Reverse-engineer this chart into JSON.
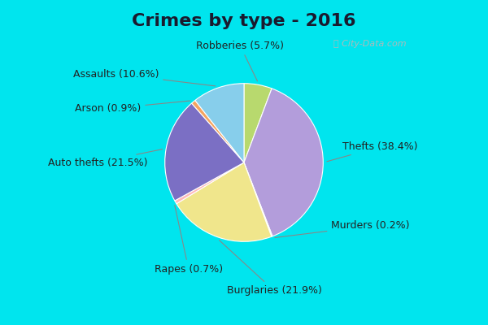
{
  "title": "Crimes by type - 2016",
  "pie_labels": [
    "Robberies",
    "Thefts",
    "Murders",
    "Burglaries",
    "Rapes",
    "Auto thefts",
    "Arson",
    "Assaults"
  ],
  "pie_sizes": [
    5.7,
    38.4,
    0.2,
    21.9,
    0.7,
    21.5,
    0.9,
    10.6
  ],
  "pie_colors": [
    "#b8d96e",
    "#b39ddb",
    "#dede88",
    "#f0e68c",
    "#ffb8b8",
    "#7b6fc4",
    "#f4a460",
    "#87ceeb"
  ],
  "background_cyan": "#00e5ee",
  "background_main": "#d4edd4",
  "title_fontsize": 16,
  "label_fontsize": 9,
  "startangle": 90,
  "label_coords": [
    [
      "Robberies (5.7%)",
      -0.05,
      1.48
    ],
    [
      "Thefts (38.4%)",
      1.72,
      0.2
    ],
    [
      "Murders (0.2%)",
      1.6,
      -0.8
    ],
    [
      "Burglaries (21.9%)",
      0.38,
      -1.62
    ],
    [
      "Rapes (0.7%)",
      -0.7,
      -1.35
    ],
    [
      "Auto thefts (21.5%)",
      -1.85,
      0.0
    ],
    [
      "Arson (0.9%)",
      -1.72,
      0.68
    ],
    [
      "Assaults (10.6%)",
      -1.62,
      1.12
    ]
  ]
}
